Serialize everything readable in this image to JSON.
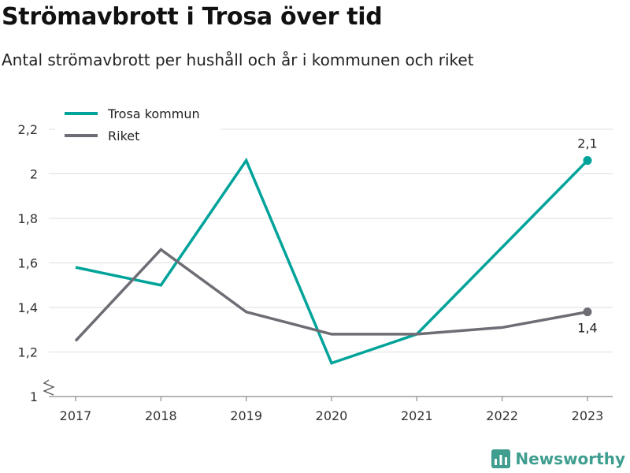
{
  "title": "Strömavbrott i Trosa över tid",
  "subtitle": "Antal strömavbrott per hushåll och år i kommunen och riket",
  "brand": {
    "name": "Newsworthy",
    "icon": "bar-chart-logo-icon",
    "color": "#3f9e8f"
  },
  "chart_data": {
    "type": "line",
    "x": [
      "2017",
      "2018",
      "2019",
      "2020",
      "2021",
      "2022",
      "2023"
    ],
    "series": [
      {
        "name": "Trosa kommun",
        "color": "#00a39a",
        "values": [
          1.58,
          1.5,
          2.06,
          1.15,
          1.28,
          1.67,
          2.06
        ],
        "end_label": "2,1"
      },
      {
        "name": "Riket",
        "color": "#6e6d75",
        "values": [
          1.25,
          1.66,
          1.38,
          1.28,
          1.28,
          1.31,
          1.38
        ],
        "end_label": "1,4"
      }
    ],
    "y_ticks": [
      {
        "value": 1.0,
        "label": "1"
      },
      {
        "value": 1.2,
        "label": "1,2"
      },
      {
        "value": 1.4,
        "label": "1,4"
      },
      {
        "value": 1.6,
        "label": "1,6"
      },
      {
        "value": 1.8,
        "label": "1,8"
      },
      {
        "value": 2.0,
        "label": "2"
      },
      {
        "value": 2.2,
        "label": "2,2"
      }
    ],
    "ylim": [
      1.0,
      2.2
    ],
    "axis_break": true,
    "grid": true,
    "legend": "top-left"
  }
}
